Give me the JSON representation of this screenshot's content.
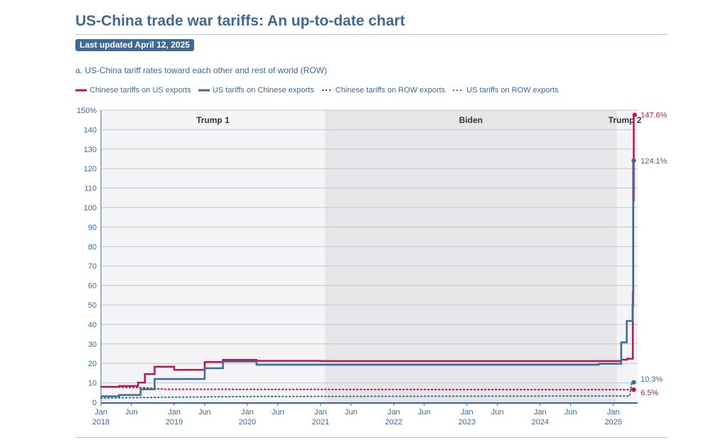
{
  "page": {
    "title": "US-China trade war tariffs: An up-to-date chart",
    "last_updated": "Last updated April 12, 2025",
    "subtitle": "a. US-China tariff rates toward each other and rest of world (ROW)"
  },
  "colors": {
    "china_on_us": "#c0144f",
    "us_on_china": "#3d6a96",
    "grid": "#b9c7d6",
    "axis_text": "#3d6a96",
    "shade_light": "#f4f4f6",
    "shade_dark": "#e6e6e9"
  },
  "chart_data": {
    "type": "line",
    "title": "a. US-China tariff rates toward each other and rest of world (ROW)",
    "ylabel": "",
    "xlabel": "",
    "ylim": [
      0,
      150
    ],
    "y_ticks": [
      0,
      10,
      20,
      30,
      40,
      50,
      60,
      70,
      80,
      90,
      100,
      110,
      120,
      130,
      140,
      150
    ],
    "y_tick_labels": [
      "0",
      "10",
      "20",
      "30",
      "40",
      "50",
      "60",
      "70",
      "80",
      "90",
      "100",
      "110",
      "120",
      "130",
      "140",
      "150%"
    ],
    "x_unit": "months since Jan 2018",
    "xlim": [
      0,
      88
    ],
    "x_ticks": [
      {
        "month": 0,
        "top": "Jan",
        "bottom": "2018"
      },
      {
        "month": 5,
        "top": "Jun",
        "bottom": ""
      },
      {
        "month": 12,
        "top": "Jan",
        "bottom": "2019"
      },
      {
        "month": 17,
        "top": "Jun",
        "bottom": ""
      },
      {
        "month": 24,
        "top": "Jan",
        "bottom": "2020"
      },
      {
        "month": 29,
        "top": "Jun",
        "bottom": ""
      },
      {
        "month": 36,
        "top": "Jan",
        "bottom": "2021"
      },
      {
        "month": 41,
        "top": "Jun",
        "bottom": ""
      },
      {
        "month": 48,
        "top": "Jan",
        "bottom": "2022"
      },
      {
        "month": 53,
        "top": "Jun",
        "bottom": ""
      },
      {
        "month": 60,
        "top": "Jan",
        "bottom": "2023"
      },
      {
        "month": 65,
        "top": "Jun",
        "bottom": ""
      },
      {
        "month": 72,
        "top": "Jan",
        "bottom": "2024"
      },
      {
        "month": 77,
        "top": "Jun",
        "bottom": ""
      },
      {
        "month": 84,
        "top": "Jan",
        "bottom": "2025"
      }
    ],
    "periods": [
      {
        "label": "Trump 1",
        "start": 0,
        "end": 36.7
      },
      {
        "label": "Biden",
        "start": 36.7,
        "end": 84.6
      },
      {
        "label": "Trump 2",
        "start": 84.6,
        "end": 88
      }
    ],
    "series": [
      {
        "name": "Chinese tariffs on US exports",
        "style": "solid",
        "color": "#c0144f",
        "points": [
          [
            0,
            8.0
          ],
          [
            3,
            8.4
          ],
          [
            6.1,
            10.1
          ],
          [
            7.2,
            14.5
          ],
          [
            8.8,
            18.3
          ],
          [
            12,
            16.7
          ],
          [
            17,
            20.7
          ],
          [
            20,
            21.8
          ],
          [
            25.5,
            21.3
          ],
          [
            36,
            21.2
          ],
          [
            60,
            21.2
          ],
          [
            84,
            21.2
          ],
          [
            85.3,
            21.9
          ],
          [
            86.3,
            22.4
          ],
          [
            87.15,
            22.4
          ],
          [
            87.2,
            56.4
          ],
          [
            87.28,
            103.6
          ],
          [
            87.35,
            147.6
          ],
          [
            87.5,
            147.6
          ]
        ],
        "end_label": "147.6%",
        "end_value": 147.6
      },
      {
        "name": "US tariffs on Chinese exports",
        "style": "solid",
        "color": "#3d6a96",
        "points": [
          [
            0,
            3.1
          ],
          [
            3,
            3.8
          ],
          [
            6.5,
            6.7
          ],
          [
            8.8,
            12.0
          ],
          [
            17,
            17.5
          ],
          [
            20,
            21.0
          ],
          [
            25.5,
            19.3
          ],
          [
            36,
            19.3
          ],
          [
            60,
            19.3
          ],
          [
            81.6,
            19.3
          ],
          [
            81.6,
            19.8
          ],
          [
            84.6,
            19.8
          ],
          [
            85.3,
            30.8
          ],
          [
            86.2,
            41.8
          ],
          [
            87.1,
            41.8
          ],
          [
            87.15,
            49.6
          ],
          [
            87.25,
            124.1
          ],
          [
            87.35,
            124.1
          ]
        ],
        "end_label": "124.1%",
        "end_value": 124.1
      },
      {
        "name": "Chinese tariffs on ROW exports",
        "style": "dotted",
        "color": "#c0144f",
        "points": [
          [
            0,
            8.0
          ],
          [
            7,
            7.5
          ],
          [
            10.5,
            6.7
          ],
          [
            87.35,
            6.5
          ]
        ],
        "end_label": "6.5%",
        "end_value": 6.5
      },
      {
        "name": "US tariffs on ROW exports",
        "style": "dotted",
        "color": "#3d6a96",
        "points": [
          [
            0,
            2.2
          ],
          [
            10,
            2.6
          ],
          [
            25,
            3.0
          ],
          [
            86.7,
            3.3
          ],
          [
            87.05,
            10.3
          ],
          [
            87.35,
            10.3
          ]
        ],
        "end_label": "10.3%",
        "end_value": 10.3
      }
    ]
  }
}
